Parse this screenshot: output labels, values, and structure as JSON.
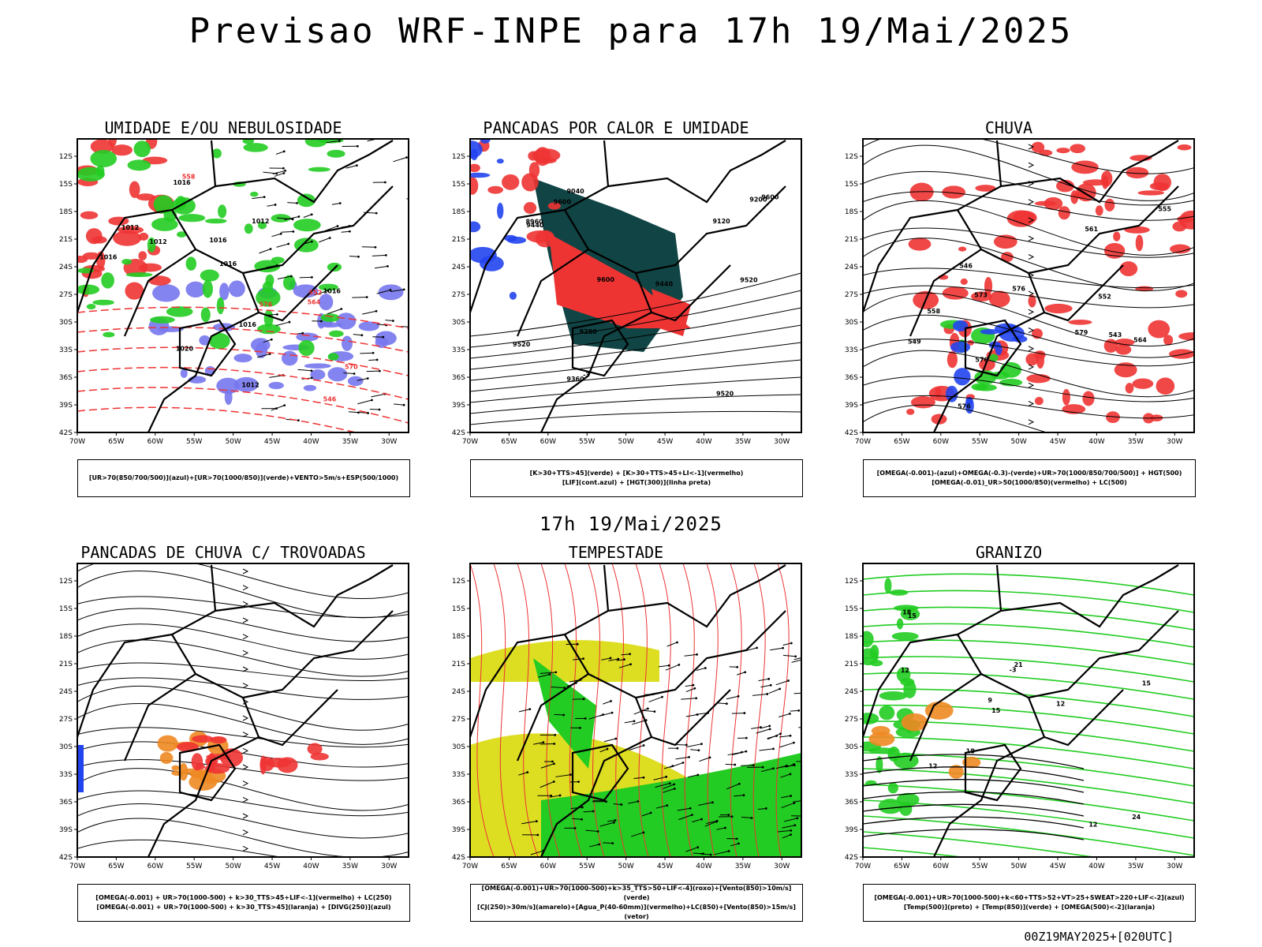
{
  "main_title": "Previsao WRF-INPE  para 17h 19/Mai/2025",
  "subtitle": "17h 19/Mai/2025",
  "footer": "00Z19MAY2025+[020UTC]",
  "axes": {
    "lat_labels": [
      "12S",
      "15S",
      "18S",
      "21S",
      "24S",
      "27S",
      "30S",
      "33S",
      "36S",
      "39S",
      "42S"
    ],
    "lon_labels": [
      "70W",
      "65W",
      "60W",
      "55W",
      "50W",
      "45W",
      "40W",
      "35W",
      "30W"
    ]
  },
  "colors": {
    "humidity_green": "#22cc22",
    "precip_red": "#ee3333",
    "wind_blue": "#7777ee",
    "dark_teal": "#114444",
    "yellow": "#dddd22",
    "orange": "#ee8822",
    "blue": "#2244ee"
  },
  "panels": [
    {
      "title": "UMIDADE E/OU NEBULOSIDADE",
      "legend": [
        "[UR>70(850/700/500)](azul)+[UR>70(1000/850)](verde)+VENTO>5m/s+ESP(500/1000)"
      ],
      "contour_labels": [
        "1012",
        "1012",
        "1016",
        "1016",
        "1020",
        "1012",
        "1016",
        "576",
        "570",
        "564",
        "558",
        "552",
        "546",
        "1016",
        "1016",
        "1012",
        "1016"
      ]
    },
    {
      "title": "PANCADAS POR CALOR E UMIDADE",
      "legend": [
        "[K>30+TTS>45](verde) + [K>30+TTS>45+LI<-1](vermelho)",
        "[LIF](cont.azul) + [HGT(300)](linha preta)"
      ],
      "contour_labels": [
        "9600",
        "9520",
        "9600",
        "9520",
        "9520",
        "9440",
        "9440",
        "9360",
        "9280",
        "9200",
        "9120",
        "9040",
        "8960",
        "9600",
        "-3"
      ]
    },
    {
      "title": "CHUVA",
      "legend": [
        "[OMEGA(-0.001)-(azul)+OMEGA(-0.3)-(verde)+UR>70(1000/850/700/500)] + HGT(500)",
        "[OMEGA(-0.01)_UR>50(1000/850)(vermelho) + LC(500)"
      ],
      "contour_labels": [
        "576",
        "579",
        "573",
        "570",
        "564",
        "561",
        "558",
        "555",
        "552",
        "549",
        "546",
        "543",
        "576"
      ]
    },
    {
      "title": "PANCADAS DE CHUVA C/ TROVOADAS",
      "legend": [
        "[OMEGA(-0.001) + UR>70(1000-500) + k>30_TTS>45+LIF<-1](vermelho) + LC(250)",
        "[OMEGA(-0.001) + UR>70(1000-500) + k>30_TTS>45](laranja) + [DIVG(250)](azul)"
      ],
      "contour_labels": []
    },
    {
      "title": "TEMPESTADE",
      "legend": [
        "[OMEGA(-0.001)+UR>70(1000-500)+k>35_TTS>50+LIF<-4](roxo)+[Vento(850)>10m/s](verde)",
        "[CJ(250)>30m/s](amarelo)+[Agua_P(40-60mm)](vermelho)+LC(850)+[Vento(850)>15m/s](vetor)"
      ],
      "contour_labels": []
    },
    {
      "title": "GRANIZO",
      "legend": [
        "[OMEGA(-0.001)+UR>70(1000-500)+k<60+TTS>52+VT>25+SWEAT>220+LIF<-2](azul)",
        "[Temp(500)](preto) + [Temp(850)](verde) + [OMEGA(500)<-2](laranja)"
      ],
      "contour_labels": [
        "15",
        "12",
        "12",
        "15",
        "18",
        "21",
        "24",
        "18",
        "15",
        "12",
        "12",
        "9",
        "-3"
      ]
    }
  ]
}
